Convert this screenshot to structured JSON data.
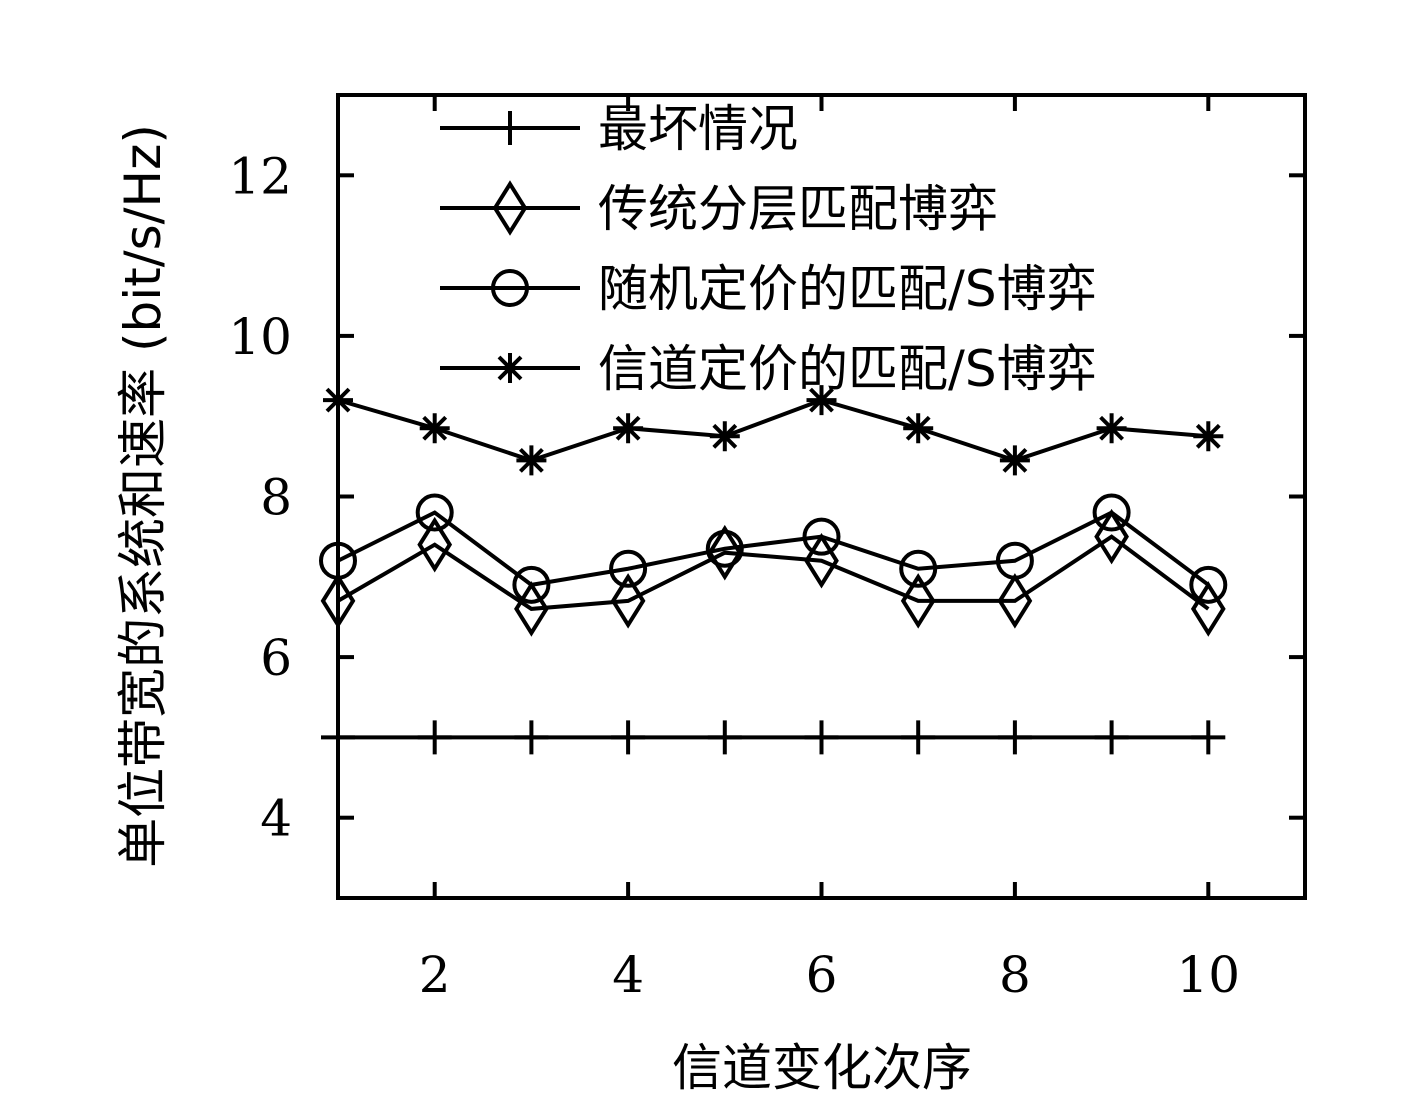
{
  "chart_data": {
    "type": "line",
    "xlabel": "信道变化次序",
    "ylabel": "单位带宽的系统和速率 (bit/s/Hz)",
    "xlim": [
      1,
      11
    ],
    "ylim": [
      3,
      13
    ],
    "xticks": [
      2,
      4,
      6,
      8,
      10
    ],
    "yticks": [
      4,
      6,
      8,
      10,
      12
    ],
    "grid": false,
    "legend_position": "top",
    "x": [
      1,
      2,
      3,
      4,
      5,
      6,
      7,
      8,
      9,
      10
    ],
    "series": [
      {
        "name": "最坏情况",
        "marker": "plus",
        "values": [
          5,
          5,
          5,
          5,
          5,
          5,
          5,
          5,
          5,
          5
        ]
      },
      {
        "name": "传统分层匹配博弈",
        "marker": "diamond",
        "values": [
          6.7,
          7.4,
          6.6,
          6.7,
          7.3,
          7.2,
          6.7,
          6.7,
          7.5,
          6.6
        ]
      },
      {
        "name": "随机定价的匹配/S博弈",
        "marker": "circle",
        "values": [
          7.2,
          7.8,
          6.9,
          7.1,
          7.35,
          7.5,
          7.1,
          7.2,
          7.8,
          6.9
        ]
      },
      {
        "name": "信道定价的匹配/S博弈",
        "marker": "star",
        "values": [
          9.2,
          8.85,
          8.45,
          8.85,
          8.75,
          9.2,
          8.85,
          8.45,
          8.85,
          8.75
        ]
      }
    ]
  }
}
